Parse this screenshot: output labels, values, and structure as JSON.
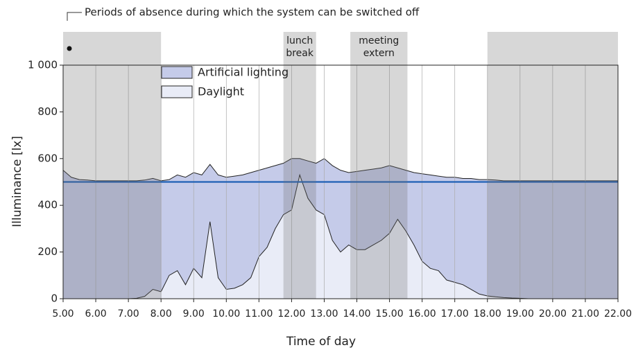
{
  "chart_data": {
    "type": "area",
    "annotation": "Periods of absence during which the system can be switched off",
    "xlabel": "Time of day",
    "ylabel": "Illuminance [lx]",
    "x": [
      5,
      5.25,
      5.5,
      5.75,
      6,
      6.25,
      6.5,
      6.75,
      7,
      7.25,
      7.5,
      7.75,
      8,
      8.25,
      8.5,
      8.75,
      9,
      9.25,
      9.5,
      9.75,
      10,
      10.25,
      10.5,
      10.75,
      11,
      11.25,
      11.5,
      11.75,
      12,
      12.25,
      12.5,
      12.75,
      13,
      13.25,
      13.5,
      13.75,
      14,
      14.25,
      14.5,
      14.75,
      15,
      15.25,
      15.5,
      15.75,
      16,
      16.25,
      16.5,
      16.75,
      17,
      17.25,
      17.5,
      17.75,
      18,
      18.25,
      18.5,
      18.75,
      19,
      19.25,
      19.5,
      19.75,
      20,
      20.25,
      20.5,
      20.75,
      21,
      21.25,
      21.5,
      21.75,
      22
    ],
    "series": [
      {
        "name": "Artificial lighting",
        "color": "#c5cbe9",
        "values": [
          550,
          520,
          510,
          508,
          505,
          505,
          505,
          505,
          505,
          503,
          498,
          475,
          475,
          410,
          410,
          460,
          410,
          440,
          245,
          440,
          480,
          480,
          470,
          450,
          370,
          340,
          270,
          220,
          220,
          70,
          160,
          200,
          240,
          320,
          350,
          310,
          335,
          340,
          325,
          310,
          290,
          220,
          260,
          310,
          375,
          400,
          405,
          440,
          450,
          455,
          475,
          490,
          498,
          500,
          500,
          502,
          503,
          505,
          505,
          505,
          505,
          505,
          505,
          505,
          505,
          505,
          505,
          505,
          505
        ]
      },
      {
        "name": "Daylight",
        "color": "#e9ecf7",
        "values": [
          0,
          0,
          0,
          0,
          0,
          0,
          0,
          0,
          0,
          2,
          10,
          40,
          30,
          100,
          120,
          60,
          130,
          90,
          330,
          90,
          40,
          45,
          60,
          90,
          180,
          220,
          300,
          360,
          380,
          530,
          430,
          380,
          360,
          250,
          200,
          230,
          210,
          210,
          230,
          250,
          280,
          340,
          290,
          230,
          160,
          130,
          120,
          80,
          70,
          60,
          40,
          20,
          12,
          8,
          5,
          3,
          2,
          0,
          0,
          0,
          0,
          0,
          0,
          0,
          0,
          0,
          0,
          0,
          0
        ]
      }
    ],
    "reference_line": {
      "value": 500,
      "color": "#1f5fb5"
    },
    "absence_periods": [
      {
        "range": [
          5,
          8
        ]
      },
      {
        "range": [
          11.75,
          12.75
        ],
        "label": [
          "lunch",
          "break"
        ]
      },
      {
        "range": [
          13.8,
          15.55
        ],
        "label": [
          "meeting",
          "extern"
        ]
      },
      {
        "range": [
          18,
          22
        ]
      }
    ],
    "xlim": [
      5,
      22
    ],
    "xticks": [
      {
        "value": 5,
        "label": "5.00"
      },
      {
        "value": 6,
        "label": "6.00"
      },
      {
        "value": 7,
        "label": "7.00"
      },
      {
        "value": 8,
        "label": "8.00"
      },
      {
        "value": 9,
        "label": "9.00"
      },
      {
        "value": 10,
        "label": "10.00"
      },
      {
        "value": 11,
        "label": "11.00"
      },
      {
        "value": 12,
        "label": "12.00"
      },
      {
        "value": 13,
        "label": "13.00"
      },
      {
        "value": 14,
        "label": "14.00"
      },
      {
        "value": 15,
        "label": "15.00"
      },
      {
        "value": 16,
        "label": "16.00"
      },
      {
        "value": 17,
        "label": "17.00"
      },
      {
        "value": 18,
        "label": "18.00"
      },
      {
        "value": 19,
        "label": "19.00"
      },
      {
        "value": 20,
        "label": "20.00"
      },
      {
        "value": 21,
        "label": "21.00"
      },
      {
        "value": 22,
        "label": "22.00"
      }
    ],
    "ylim": [
      0,
      1000
    ],
    "yticks": [
      0,
      200,
      400,
      600,
      800,
      {
        "value": 1000,
        "label": "1 000"
      }
    ],
    "xgrid": true
  }
}
